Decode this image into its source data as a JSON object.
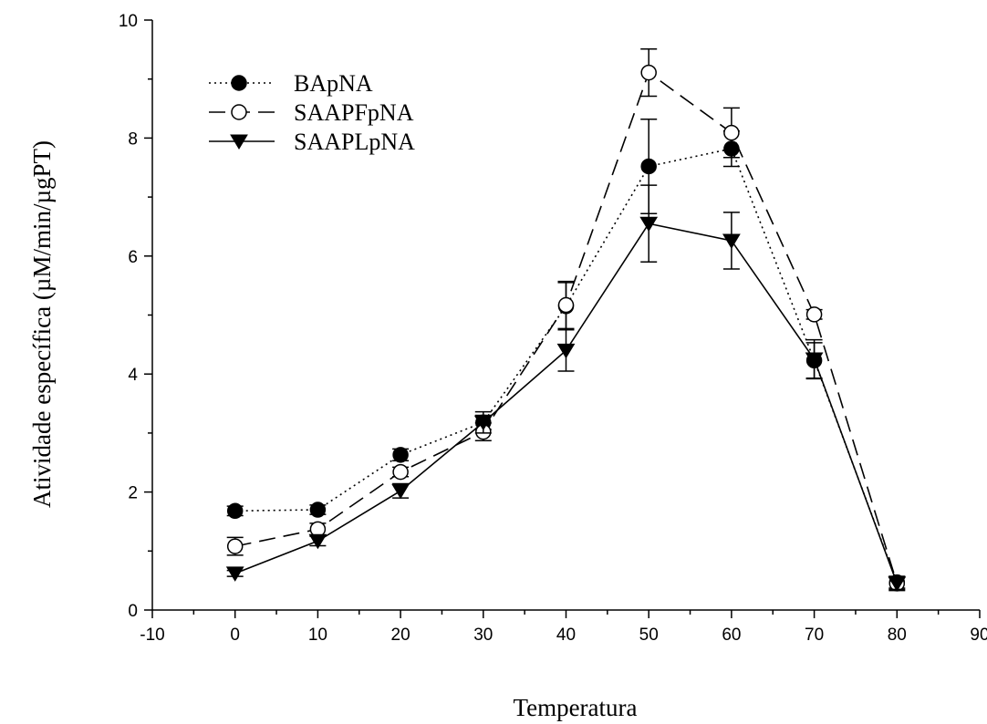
{
  "chart_data": {
    "type": "line",
    "title": "",
    "xlabel": "Temperatura",
    "ylabel": "Atividade específica (µM/min/µgPT)",
    "xlim": [
      -10,
      90
    ],
    "ylim": [
      0,
      10
    ],
    "xticks": [
      -10,
      0,
      10,
      20,
      30,
      40,
      50,
      60,
      70,
      80,
      90
    ],
    "yticks": [
      0,
      2,
      4,
      6,
      8,
      10
    ],
    "grid": false,
    "legend": "top-left",
    "x": [
      0,
      10,
      20,
      30,
      40,
      50,
      60,
      70,
      80
    ],
    "series": [
      {
        "name": "BApNA",
        "line_style": "dotted",
        "marker": "filled-circle",
        "values": [
          1.68,
          1.7,
          2.63,
          3.18,
          5.15,
          7.52,
          7.82,
          4.23,
          0.47
        ],
        "errors": [
          0.08,
          0.08,
          0.1,
          0.12,
          0.4,
          0.8,
          0.3,
          0.3,
          0.1
        ]
      },
      {
        "name": "SAAPFpNA",
        "line_style": "dashed",
        "marker": "open-circle",
        "values": [
          1.08,
          1.37,
          2.34,
          3.02,
          5.17,
          9.11,
          8.09,
          5.01,
          0.45
        ],
        "errors": [
          0.15,
          0.1,
          0.08,
          0.15,
          0.4,
          0.4,
          0.42,
          0.08,
          0.12
        ]
      },
      {
        "name": "SAAPLpNA",
        "line_style": "solid",
        "marker": "filled-triangle-down",
        "values": [
          0.62,
          1.17,
          2.02,
          3.18,
          4.4,
          6.55,
          6.26,
          4.25,
          0.45
        ],
        "errors": [
          0.05,
          0.08,
          0.12,
          0.18,
          0.35,
          0.65,
          0.48,
          0.33,
          0.1
        ]
      }
    ]
  }
}
